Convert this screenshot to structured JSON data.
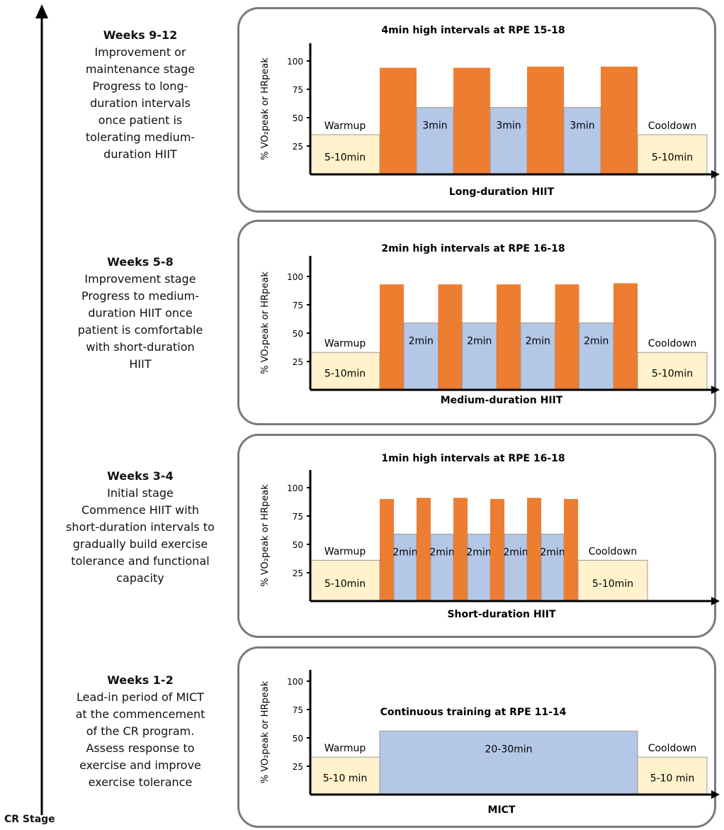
{
  "axis_label": "CR Stage",
  "stages": [
    {
      "title": "Weeks 9-12",
      "description": "Improvement or\nmaintenance stage\nProgress to long-\nduration intervals\nonce patient is\ntolerating medium-\nduration HIIT",
      "panel": {
        "header": "4min high intervals at RPE 15-18",
        "xlabel": "Long-duration HIIT",
        "ylabel": "% VO₂peak or HRpeak",
        "yticks": [
          "100",
          "75",
          "50",
          "25"
        ],
        "segments": [
          {
            "kind": "warm",
            "level": 35,
            "top_label": "Warmup",
            "inner_label": "5-10min"
          },
          {
            "kind": "high",
            "level": 94
          },
          {
            "kind": "low",
            "level": 59,
            "inner_label": "3min"
          },
          {
            "kind": "high",
            "level": 94
          },
          {
            "kind": "low",
            "level": 59,
            "inner_label": "3min"
          },
          {
            "kind": "high",
            "level": 95
          },
          {
            "kind": "low",
            "level": 59,
            "inner_label": "3min"
          },
          {
            "kind": "high",
            "level": 95
          },
          {
            "kind": "warm",
            "level": 35,
            "top_label": "Cooldown",
            "inner_label": "5-10min"
          }
        ]
      }
    },
    {
      "title": "Weeks 5-8",
      "description": "Improvement stage\nProgress to medium-\nduration HIIT once\npatient is comfortable\nwith short-duration\nHIIT",
      "panel": {
        "header": "2min high intervals at RPE 16-18",
        "xlabel": "Medium-duration HIIT",
        "ylabel": "% VO₂peak or HRpeak",
        "yticks": [
          "100",
          "75",
          "50",
          "25"
        ],
        "segments": [
          {
            "kind": "warm",
            "level": 33,
            "top_label": "Warmup",
            "inner_label": "5-10min"
          },
          {
            "kind": "high",
            "level": 93
          },
          {
            "kind": "low",
            "level": 59,
            "inner_label": "2min"
          },
          {
            "kind": "high",
            "level": 93
          },
          {
            "kind": "low",
            "level": 59,
            "inner_label": "2min"
          },
          {
            "kind": "high",
            "level": 93
          },
          {
            "kind": "low",
            "level": 59,
            "inner_label": "2min"
          },
          {
            "kind": "high",
            "level": 93
          },
          {
            "kind": "low",
            "level": 59,
            "inner_label": "2min"
          },
          {
            "kind": "high",
            "level": 94
          },
          {
            "kind": "warm",
            "level": 33,
            "top_label": "Cooldown",
            "inner_label": "5-10min"
          }
        ]
      }
    },
    {
      "title": "Weeks 3-4",
      "description": "Initial stage\nCommence HIIT with\nshort-duration intervals to\ngradually build exercise\ntolerance and functional\ncapacity",
      "panel": {
        "header": "1min high intervals at RPE 16-18",
        "xlabel": "Short-duration HIIT",
        "ylabel": "% VO₂peak or HRpeak",
        "yticks": [
          "100",
          "75",
          "50",
          "25"
        ],
        "segments": [
          {
            "kind": "warm",
            "level": 36,
            "top_label": "Warmup",
            "inner_label": "5-10min"
          },
          {
            "kind": "high",
            "level": 90
          },
          {
            "kind": "low",
            "level": 59,
            "inner_label": "2min"
          },
          {
            "kind": "high",
            "level": 91
          },
          {
            "kind": "low",
            "level": 59,
            "inner_label": "2min"
          },
          {
            "kind": "high",
            "level": 91
          },
          {
            "kind": "low",
            "level": 59,
            "inner_label": "2min"
          },
          {
            "kind": "high",
            "level": 90
          },
          {
            "kind": "low",
            "level": 59,
            "inner_label": "2min"
          },
          {
            "kind": "high",
            "level": 91
          },
          {
            "kind": "low",
            "level": 59,
            "inner_label": "2min"
          },
          {
            "kind": "high",
            "level": 90
          },
          {
            "kind": "warm",
            "level": 36,
            "top_label": "Cooldown",
            "inner_label": "5-10min"
          }
        ]
      }
    },
    {
      "title": "Weeks 1-2",
      "description": "Lead-in period of MICT\nat the commencement\nof the CR program.\nAssess response to\nexercise and improve\nexercise tolerance",
      "panel": {
        "header": "Continuous training at RPE 11-14",
        "xlabel": "MICT",
        "ylabel": "% VO₂peak or HRpeak",
        "yticks": [
          "100",
          "75",
          "50",
          "25"
        ],
        "segments": [
          {
            "kind": "warm",
            "level": 33,
            "top_label": "Warmup",
            "inner_label": "5-10 min"
          },
          {
            "kind": "low",
            "level": 56,
            "inner_label": "20-30min"
          },
          {
            "kind": "warm",
            "level": 33,
            "top_label": "Cooldown",
            "inner_label": "5-10 min"
          }
        ]
      }
    }
  ],
  "colors": {
    "high": "#ED7D31",
    "low": "#B4C7E7",
    "warm": "#FFF2CC",
    "axis": "#000000",
    "panel_border": "#7A7A7A"
  }
}
